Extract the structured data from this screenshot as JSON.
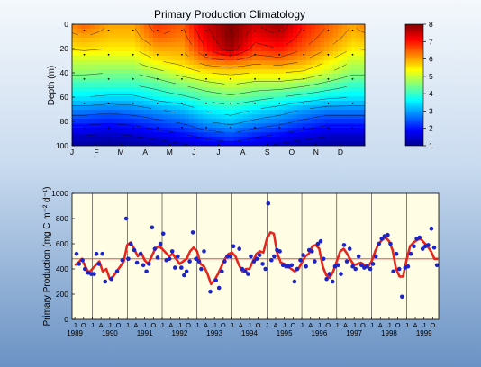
{
  "chart_data": [
    {
      "type": "heatmap",
      "title": "Primary Production Climatology",
      "xlabel": "",
      "ylabel": "Depth (m)",
      "x_ticks": [
        "J",
        "F",
        "M",
        "A",
        "M",
        "J",
        "J",
        "A",
        "S",
        "O",
        "N",
        "D"
      ],
      "ylim": [
        100,
        0
      ],
      "y_ticks": [
        0,
        20,
        40,
        60,
        80,
        100
      ],
      "colorbar": {
        "min": 1,
        "max": 8,
        "ticks": [
          1,
          2,
          3,
          4,
          5,
          6,
          7,
          8
        ]
      },
      "grid": false,
      "sample_depths": [
        5,
        25,
        45,
        65,
        85
      ],
      "sample_months": [
        0.5,
        1.5,
        2.5,
        3.5,
        4.5,
        5.5,
        6.5,
        7.5,
        8.5,
        9.5,
        10.5,
        11.5
      ],
      "months": [
        "Jan",
        "Feb",
        "Mar",
        "Apr",
        "May",
        "Jun",
        "Jul",
        "Aug",
        "Sep",
        "Oct",
        "Nov",
        "Dec"
      ],
      "depths": [
        0,
        10,
        20,
        30,
        40,
        50,
        60,
        70,
        80,
        90,
        100
      ],
      "values": [
        [
          6.5,
          6.0,
          6.0,
          6.8,
          6.5,
          7.5,
          8.0,
          7.5,
          7.8,
          7.0,
          6.5,
          6.0
        ],
        [
          6.0,
          5.8,
          5.8,
          6.5,
          6.3,
          7.3,
          8.0,
          7.2,
          7.5,
          6.8,
          6.3,
          5.8
        ],
        [
          5.6,
          5.5,
          5.5,
          6.0,
          6.0,
          7.0,
          7.8,
          6.8,
          7.0,
          6.5,
          6.0,
          5.5
        ],
        [
          5.0,
          5.0,
          5.0,
          5.5,
          5.7,
          6.3,
          6.5,
          6.2,
          6.3,
          6.0,
          5.5,
          5.0
        ],
        [
          4.6,
          4.5,
          4.5,
          4.8,
          5.2,
          5.5,
          5.6,
          5.5,
          5.5,
          5.4,
          5.0,
          4.6
        ],
        [
          4.0,
          4.0,
          4.0,
          4.2,
          4.5,
          4.8,
          5.0,
          4.8,
          4.8,
          4.6,
          4.3,
          4.0
        ],
        [
          3.5,
          3.4,
          3.4,
          3.7,
          3.9,
          4.2,
          4.4,
          4.2,
          4.0,
          3.8,
          3.6,
          3.5
        ],
        [
          2.8,
          2.7,
          2.8,
          3.0,
          3.2,
          3.6,
          3.8,
          3.5,
          3.3,
          3.0,
          2.8,
          2.8
        ],
        [
          2.2,
          2.1,
          2.2,
          2.4,
          2.6,
          3.0,
          3.2,
          2.9,
          2.7,
          2.4,
          2.2,
          2.2
        ],
        [
          1.6,
          1.5,
          1.6,
          1.8,
          2.0,
          2.3,
          2.5,
          2.2,
          2.0,
          1.8,
          1.6,
          1.6
        ],
        [
          1.1,
          1.0,
          1.1,
          1.2,
          1.4,
          1.6,
          1.8,
          1.6,
          1.4,
          1.2,
          1.1,
          1.1
        ]
      ]
    },
    {
      "type": "scatter",
      "title": "",
      "xlabel": "",
      "ylabel": "Primary Production (mg C m⁻² d⁻¹)",
      "ylim": [
        0,
        1000
      ],
      "y_ticks": [
        0,
        200,
        400,
        600,
        800,
        1000
      ],
      "xlim": [
        1989.42,
        1999.92
      ],
      "x_tick_letters": [
        "J",
        "A",
        "J",
        "O"
      ],
      "years": [
        "1989",
        "1990",
        "1991",
        "1992",
        "1993",
        "1994",
        "1995",
        "1996",
        "1997",
        "1998",
        "1999"
      ],
      "mean_value": 480,
      "grid": false,
      "series": [
        {
          "kind": "points",
          "x": [
            1989.55,
            1989.62,
            1989.72,
            1989.79,
            1989.88,
            1989.97,
            1990.05,
            1990.12,
            1990.19,
            1990.29,
            1990.37,
            1990.55,
            1990.71,
            1990.86,
            1990.97,
            1991.03,
            1991.1,
            1991.2,
            1991.28,
            1991.38,
            1991.46,
            1991.55,
            1991.62,
            1991.71,
            1991.79,
            1991.87,
            1991.95,
            1992.03,
            1992.12,
            1992.21,
            1992.29,
            1992.37,
            1992.45,
            1992.55,
            1992.63,
            1992.7,
            1992.79,
            1992.88,
            1992.97,
            1993.05,
            1993.12,
            1993.2,
            1993.38,
            1993.54,
            1993.63,
            1993.71,
            1993.79,
            1993.87,
            1993.96,
            1994.04,
            1994.21,
            1994.29,
            1994.38,
            1994.46,
            1994.54,
            1994.63,
            1994.71,
            1994.79,
            1994.88,
            1994.96,
            1995.04,
            1995.13,
            1995.21,
            1995.29,
            1995.37,
            1995.46,
            1995.55,
            1995.62,
            1995.71,
            1995.79,
            1995.87,
            1995.96,
            1996.04,
            1996.12,
            1996.21,
            1996.29,
            1996.37,
            1996.46,
            1996.54,
            1996.62,
            1996.71,
            1996.79,
            1996.88,
            1996.95,
            1997.04,
            1997.12,
            1997.21,
            1997.29,
            1997.37,
            1997.46,
            1997.54,
            1997.63,
            1997.71,
            1997.79,
            1997.87,
            1997.96,
            1998.04,
            1998.12,
            1998.21,
            1998.29,
            1998.37,
            1998.46,
            1998.54,
            1998.62,
            1998.71,
            1998.79,
            1998.87,
            1998.96,
            1999.04,
            1999.12,
            1999.21,
            1999.29,
            1999.37,
            1999.46,
            1999.54,
            1999.62,
            1999.71,
            1999.79,
            1999.87
          ],
          "y": [
            520,
            440,
            470,
            400,
            370,
            360,
            360,
            520,
            440,
            520,
            300,
            320,
            380,
            470,
            800,
            480,
            600,
            550,
            450,
            520,
            430,
            380,
            440,
            730,
            560,
            490,
            600,
            680,
            470,
            480,
            540,
            410,
            500,
            410,
            350,
            380,
            460,
            690,
            480,
            460,
            400,
            540,
            220,
            310,
            250,
            380,
            460,
            500,
            500,
            580,
            560,
            400,
            380,
            360,
            500,
            460,
            480,
            510,
            440,
            400,
            920,
            470,
            500,
            550,
            540,
            430,
            420,
            420,
            430,
            300,
            400,
            470,
            510,
            420,
            550,
            540,
            460,
            600,
            620,
            480,
            320,
            360,
            300,
            420,
            430,
            360,
            590,
            460,
            560,
            420,
            400,
            500,
            430,
            410,
            420,
            400,
            440,
            500,
            600,
            640,
            660,
            670,
            600,
            380,
            520,
            400,
            180,
            410,
            420,
            520,
            580,
            640,
            650,
            560,
            580,
            590,
            720,
            570,
            430
          ]
        },
        {
          "kind": "line",
          "x": [
            1989.5,
            1989.6,
            1989.7,
            1989.8,
            1989.9,
            1990.0,
            1990.1,
            1990.2,
            1990.3,
            1990.4,
            1990.5,
            1990.6,
            1990.7,
            1990.8,
            1990.9,
            1991.0,
            1991.1,
            1991.2,
            1991.3,
            1991.4,
            1991.5,
            1991.6,
            1991.7,
            1991.8,
            1991.9,
            1992.0,
            1992.1,
            1992.2,
            1992.3,
            1992.4,
            1992.5,
            1992.6,
            1992.7,
            1992.8,
            1992.9,
            1993.0,
            1993.1,
            1993.2,
            1993.3,
            1993.4,
            1993.5,
            1993.6,
            1993.7,
            1993.8,
            1993.9,
            1994.0,
            1994.1,
            1994.2,
            1994.3,
            1994.4,
            1994.5,
            1994.6,
            1994.7,
            1994.8,
            1994.9,
            1995.0,
            1995.1,
            1995.2,
            1995.3,
            1995.4,
            1995.5,
            1995.6,
            1995.7,
            1995.8,
            1995.9,
            1996.0,
            1996.1,
            1996.2,
            1996.3,
            1996.4,
            1996.5,
            1996.6,
            1996.7,
            1996.8,
            1996.9,
            1997.0,
            1997.1,
            1997.2,
            1997.3,
            1997.4,
            1997.5,
            1997.6,
            1997.7,
            1997.8,
            1997.9,
            1998.0,
            1998.1,
            1998.2,
            1998.3,
            1998.4,
            1998.5,
            1998.6,
            1998.7,
            1998.8,
            1998.9,
            1999.0,
            1999.1,
            1999.2,
            1999.3,
            1999.4,
            1999.5,
            1999.6,
            1999.7,
            1999.8,
            1999.9
          ],
          "y": [
            430,
            450,
            480,
            420,
            370,
            400,
            430,
            460,
            380,
            400,
            320,
            340,
            380,
            420,
            460,
            590,
            610,
            560,
            500,
            530,
            470,
            440,
            500,
            560,
            580,
            560,
            530,
            500,
            520,
            480,
            440,
            460,
            480,
            540,
            570,
            540,
            440,
            420,
            360,
            280,
            310,
            360,
            420,
            480,
            520,
            530,
            500,
            430,
            380,
            400,
            400,
            460,
            520,
            540,
            530,
            640,
            690,
            680,
            520,
            450,
            440,
            420,
            400,
            380,
            400,
            450,
            500,
            520,
            580,
            590,
            560,
            420,
            350,
            330,
            380,
            460,
            540,
            560,
            520,
            470,
            430,
            440,
            450,
            430,
            420,
            460,
            540,
            600,
            630,
            650,
            620,
            550,
            400,
            340,
            340,
            470,
            580,
            610,
            630,
            640,
            610,
            580,
            540,
            480,
            480
          ]
        }
      ]
    }
  ]
}
